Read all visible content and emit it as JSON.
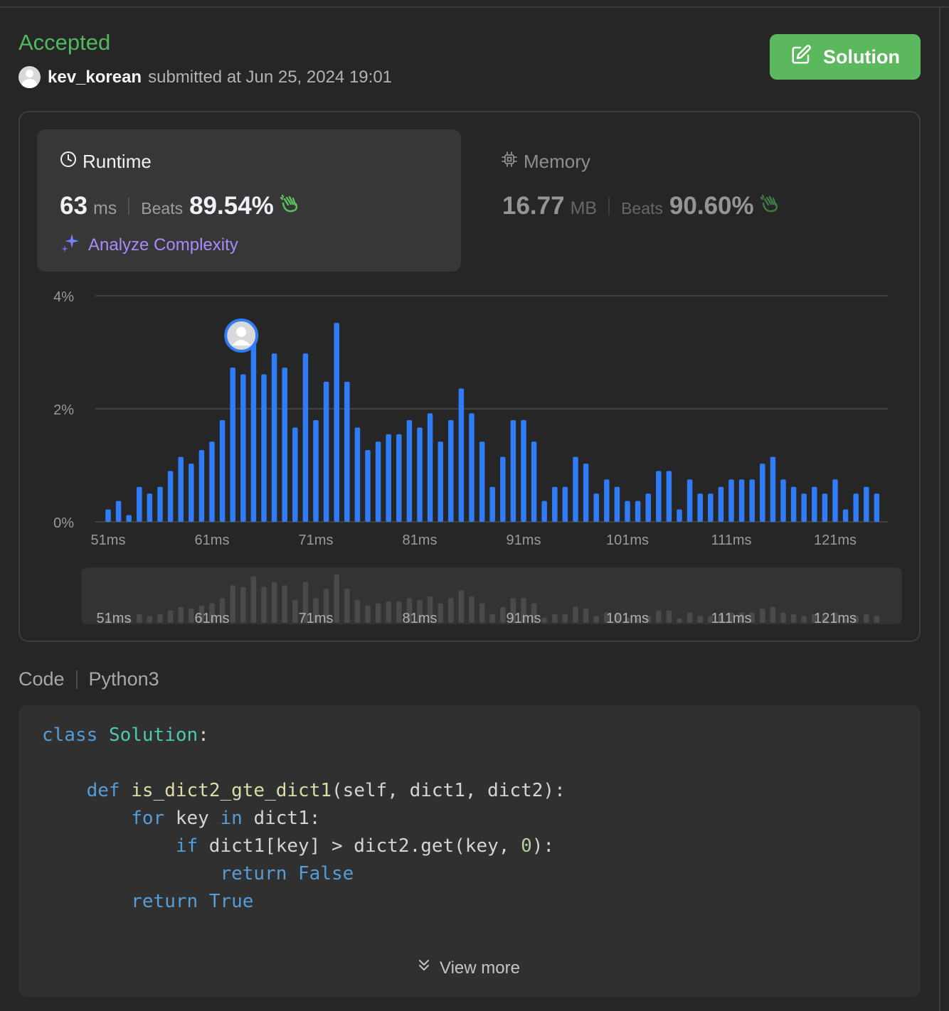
{
  "submission": {
    "status": "Accepted",
    "username": "kev_korean",
    "submitted_text": "submitted at Jun 25, 2024 19:01",
    "solution_button": "Solution"
  },
  "runtime": {
    "title": "Runtime",
    "value": "63",
    "unit": "ms",
    "beats_label": "Beats",
    "beats_pct": "89.54%",
    "analyze_label": "Analyze Complexity"
  },
  "memory": {
    "title": "Memory",
    "value": "16.77",
    "unit": "MB",
    "beats_label": "Beats",
    "beats_pct": "90.60%"
  },
  "chart_data": {
    "type": "bar",
    "x_start_ms": 51,
    "bin_ms": 1,
    "x_ticks": [
      "51ms",
      "61ms",
      "71ms",
      "81ms",
      "91ms",
      "101ms",
      "111ms",
      "121ms"
    ],
    "y_ticks": [
      "4%",
      "2%",
      "0%"
    ],
    "ylim": [
      0,
      4
    ],
    "grid": true,
    "highlight_ms": 63,
    "values": [
      0.22,
      0.37,
      0.12,
      0.62,
      0.5,
      0.62,
      0.9,
      1.15,
      1.03,
      1.27,
      1.42,
      1.8,
      2.73,
      2.61,
      3.39,
      2.61,
      2.98,
      2.73,
      1.67,
      2.98,
      1.8,
      2.48,
      3.52,
      2.48,
      1.67,
      1.27,
      1.42,
      1.55,
      1.55,
      1.8,
      1.67,
      1.92,
      1.42,
      1.8,
      2.36,
      1.92,
      1.42,
      0.62,
      1.15,
      1.8,
      1.8,
      1.42,
      0.37,
      0.62,
      0.62,
      1.15,
      1.03,
      0.5,
      0.75,
      0.62,
      0.37,
      0.37,
      0.5,
      0.9,
      0.9,
      0.22,
      0.75,
      0.5,
      0.5,
      0.62,
      0.75,
      0.75,
      0.75,
      1.03,
      1.15,
      0.75,
      0.62,
      0.5,
      0.62,
      0.5,
      0.75,
      0.22,
      0.5,
      0.62,
      0.5
    ]
  },
  "code": {
    "label": "Code",
    "language": "Python3",
    "view_more": "View more",
    "lines": [
      [
        [
          "kw",
          "class"
        ],
        [
          "",
          " "
        ],
        [
          "cls",
          "Solution"
        ],
        [
          "",
          ":"
        ]
      ],
      [],
      [
        [
          "",
          "    "
        ],
        [
          "kw",
          "def"
        ],
        [
          "",
          " "
        ],
        [
          "fn",
          "is_dict2_gte_dict1"
        ],
        [
          "",
          "(self, dict1, dict2):"
        ]
      ],
      [
        [
          "",
          "        "
        ],
        [
          "kw",
          "for"
        ],
        [
          "",
          " key "
        ],
        [
          "kw",
          "in"
        ],
        [
          "",
          " dict1:"
        ]
      ],
      [
        [
          "",
          "            "
        ],
        [
          "kw",
          "if"
        ],
        [
          "",
          " dict1[key] > dict2.get(key, "
        ],
        [
          "num",
          "0"
        ],
        [
          "",
          "):"
        ]
      ],
      [
        [
          "",
          "                "
        ],
        [
          "kw",
          "return"
        ],
        [
          "",
          " "
        ],
        [
          "kw",
          "False"
        ]
      ],
      [
        [
          "",
          "        "
        ],
        [
          "kw",
          "return"
        ],
        [
          "",
          " "
        ],
        [
          "kw",
          "True"
        ]
      ]
    ]
  },
  "colors": {
    "accepted": "#4fb861",
    "bar": "#2f7cf6",
    "bar_faded": "#4a4a4a",
    "solution_button": "#5cb85c",
    "analyze": "#a78bfa"
  },
  "icons": {
    "clock": "clock-icon",
    "chip": "chip-icon",
    "clap": "clap-icon",
    "sparkle": "sparkle-icon",
    "edit": "edit-icon",
    "chevrons": "chevrons-down-icon"
  }
}
